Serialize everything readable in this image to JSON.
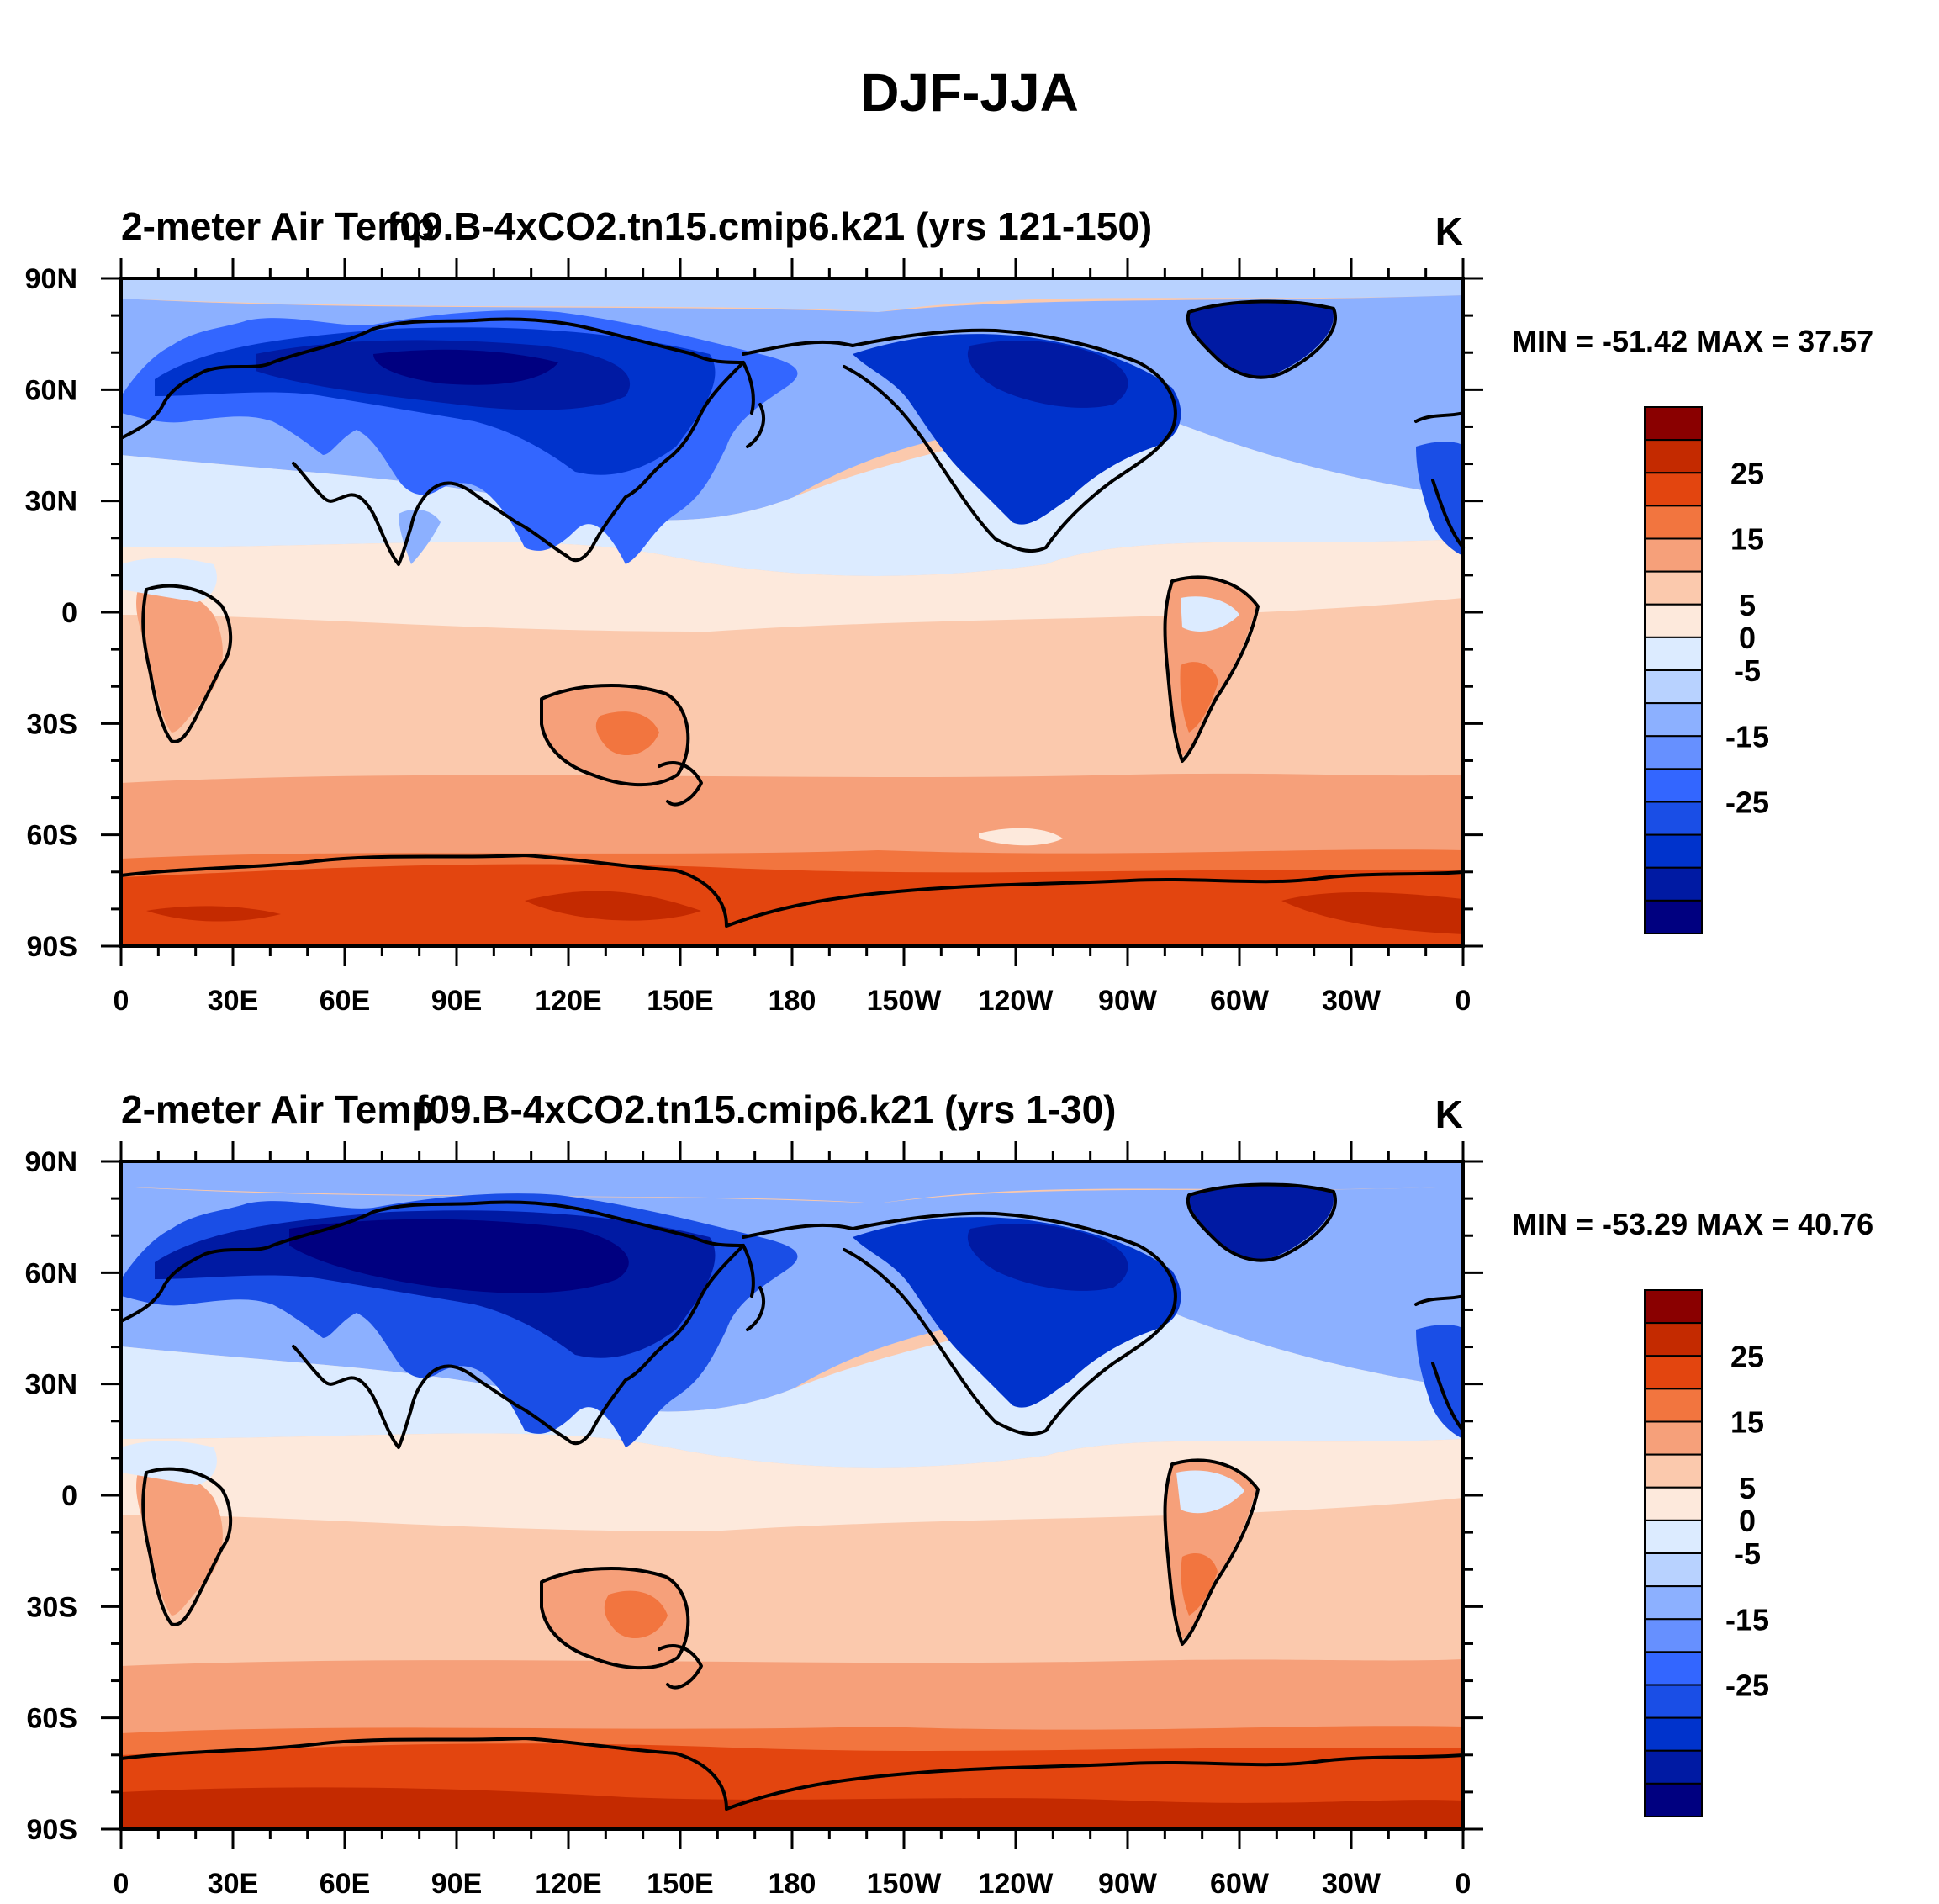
{
  "figure": {
    "title": "DJF-JJA"
  },
  "colors": {
    "levels_palette": [
      "#000080",
      "#001aa3",
      "#0033cc",
      "#1a4ee6",
      "#3366ff",
      "#6690ff",
      "#8cb0ff",
      "#b8d2ff",
      "#dcebff",
      "#fde9dc",
      "#fbc9ad",
      "#f6a07a",
      "#f2753f",
      "#e3450f",
      "#c42a00",
      "#8a0000"
    ]
  },
  "panels": [
    {
      "left_title": "2-meter Air Temp",
      "center_title": "f09.B-4xCO2.tn15.cmip6.k21 (yrs 121-150)",
      "units": "K",
      "minmax": "MIN = -51.42 MAX =  37.57",
      "x_ticks": [
        "0",
        "30E",
        "60E",
        "90E",
        "120E",
        "150E",
        "180",
        "150W",
        "120W",
        "90W",
        "60W",
        "30W",
        "0"
      ],
      "y_ticks": [
        "90N",
        "60N",
        "30N",
        "0",
        "30S",
        "60S",
        "90S"
      ],
      "colorbar_labels": [
        "25",
        "15",
        "5",
        "0",
        "-5",
        "-15",
        "-25"
      ]
    },
    {
      "left_title": "2-meter Air Temp",
      "center_title": "f09.B-4xCO2.tn15.cmip6.k21 (yrs 1-30)",
      "units": "K",
      "minmax": "MIN = -53.29 MAX =  40.76",
      "x_ticks": [
        "0",
        "30E",
        "60E",
        "90E",
        "120E",
        "150E",
        "180",
        "150W",
        "120W",
        "90W",
        "60W",
        "30W",
        "0"
      ],
      "y_ticks": [
        "90N",
        "60N",
        "30N",
        "0",
        "30S",
        "60S",
        "90S"
      ],
      "colorbar_labels": [
        "25",
        "15",
        "5",
        "0",
        "-5",
        "-15",
        "-25"
      ]
    }
  ]
}
